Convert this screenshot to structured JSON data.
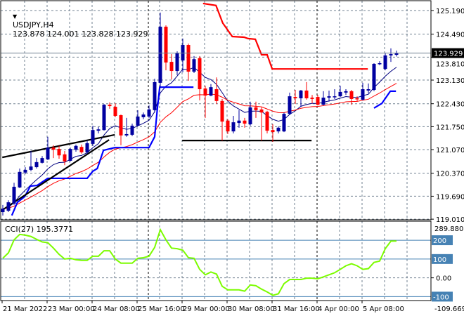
{
  "header": {
    "symbol": "USDJPY,H4",
    "ohlc": "123.878 124.001 123.828 123.929",
    "icon": "triangle-down-icon"
  },
  "current_price": "123.929",
  "colors": {
    "bull": "#0000a0",
    "bear": "#ff0000",
    "fast_ma": "#000080",
    "slow_ma": "#ff0000",
    "support": "#0000ff",
    "resistance": "#ff0000",
    "trendline": "#000000",
    "cci": "#7cfc00",
    "cci_levels": "#4682b4",
    "grid": "#708090"
  },
  "chart_data": [
    {
      "type": "candlestick",
      "title": "USDJPY,H4",
      "y_ticks": [
        "125.190",
        "124.490",
        "123.810",
        "123.130",
        "122.430",
        "121.750",
        "121.070",
        "120.370",
        "119.690",
        "119.010"
      ],
      "ylim": [
        119.01,
        125.46
      ],
      "x_ticks": [
        {
          "label": "21 Mar 2022",
          "index": 0
        },
        {
          "label": "23 Mar 00:00",
          "index": 8
        },
        {
          "label": "24 Mar 08:00",
          "index": 16
        },
        {
          "label": "25 Mar 16:00",
          "index": 24
        },
        {
          "label": "29 Mar 00:00",
          "index": 32
        },
        {
          "label": "30 Mar 08:00",
          "index": 40
        },
        {
          "label": "31 Mar 16:00",
          "index": 48
        },
        {
          "label": "4 Apr 00:00",
          "index": 56
        },
        {
          "label": "5 Apr 08:00",
          "index": 64
        }
      ],
      "grid": true,
      "period_separators": [
        26,
        56
      ],
      "candles": [
        [
          119.22,
          119.43,
          119.12,
          119.32
        ],
        [
          119.26,
          119.57,
          119.22,
          119.51
        ],
        [
          119.47,
          120.09,
          119.43,
          119.97
        ],
        [
          119.95,
          120.51,
          119.93,
          120.41
        ],
        [
          120.39,
          120.55,
          120.34,
          120.47
        ],
        [
          120.47,
          121.03,
          120.43,
          120.57
        ],
        [
          120.55,
          120.82,
          120.51,
          120.7
        ],
        [
          120.68,
          120.88,
          120.66,
          120.82
        ],
        [
          120.78,
          121.45,
          120.76,
          121.13
        ],
        [
          121.13,
          121.2,
          120.82,
          121.07
        ],
        [
          121.09,
          121.18,
          120.8,
          120.9
        ],
        [
          120.93,
          121.03,
          120.61,
          120.72
        ],
        [
          120.74,
          121.13,
          120.72,
          121.09
        ],
        [
          121.07,
          121.22,
          121.01,
          121.18
        ],
        [
          121.15,
          121.22,
          120.95,
          120.99
        ],
        [
          120.99,
          121.34,
          120.95,
          121.26
        ],
        [
          121.24,
          121.78,
          121.18,
          121.65
        ],
        [
          121.63,
          121.74,
          121.55,
          121.67
        ],
        [
          121.65,
          122.42,
          121.63,
          122.4
        ],
        [
          122.4,
          122.47,
          122.28,
          122.36
        ],
        [
          122.34,
          122.44,
          122.03,
          122.07
        ],
        [
          122.09,
          122.11,
          121.2,
          121.49
        ],
        [
          121.49,
          122.01,
          121.45,
          121.53
        ],
        [
          121.51,
          121.84,
          121.47,
          121.78
        ],
        [
          121.78,
          122.24,
          121.76,
          122.05
        ],
        [
          122.03,
          122.17,
          121.97,
          122.11
        ],
        [
          122.05,
          122.38,
          122.01,
          122.26
        ],
        [
          122.24,
          123.17,
          122.17,
          123.07
        ],
        [
          123.05,
          125.13,
          122.9,
          124.71
        ],
        [
          124.71,
          124.75,
          123.42,
          123.65
        ],
        [
          123.67,
          123.9,
          123.15,
          123.4
        ],
        [
          123.4,
          123.98,
          123.28,
          123.94
        ],
        [
          123.71,
          124.36,
          123.36,
          124.17
        ],
        [
          124.17,
          124.21,
          123.11,
          123.38
        ],
        [
          123.38,
          123.84,
          123.34,
          123.75
        ],
        [
          123.78,
          123.84,
          122.53,
          122.86
        ],
        [
          122.88,
          122.96,
          122.01,
          122.67
        ],
        [
          122.67,
          123.01,
          122.65,
          122.92
        ],
        [
          122.86,
          123.21,
          122.42,
          122.51
        ],
        [
          122.51,
          122.57,
          121.34,
          121.9
        ],
        [
          121.93,
          121.97,
          121.53,
          121.61
        ],
        [
          121.61,
          122.07,
          121.55,
          121.88
        ],
        [
          121.86,
          122.24,
          121.72,
          121.93
        ],
        [
          121.93,
          122.01,
          121.72,
          121.84
        ],
        [
          121.82,
          122.49,
          121.78,
          122.32
        ],
        [
          122.32,
          122.49,
          122.01,
          122.24
        ],
        [
          122.26,
          122.32,
          121.34,
          122.17
        ],
        [
          122.19,
          122.22,
          121.55,
          121.63
        ],
        [
          121.65,
          121.82,
          121.3,
          121.59
        ],
        [
          121.61,
          121.76,
          121.55,
          121.72
        ],
        [
          121.61,
          122.17,
          121.59,
          122.13
        ],
        [
          122.13,
          122.76,
          122.09,
          122.65
        ],
        [
          122.63,
          122.84,
          122.42,
          122.59
        ],
        [
          122.59,
          122.84,
          122.34,
          122.82
        ],
        [
          122.82,
          123.07,
          122.55,
          122.59
        ],
        [
          122.61,
          122.69,
          122.44,
          122.57
        ],
        [
          122.63,
          122.69,
          122.38,
          122.4
        ],
        [
          122.4,
          122.8,
          122.38,
          122.61
        ],
        [
          122.61,
          122.82,
          122.49,
          122.65
        ],
        [
          122.63,
          122.86,
          122.57,
          122.65
        ],
        [
          122.65,
          122.96,
          122.63,
          122.78
        ],
        [
          122.76,
          122.86,
          122.69,
          122.8
        ],
        [
          122.8,
          122.84,
          122.4,
          122.57
        ],
        [
          122.59,
          122.65,
          122.49,
          122.57
        ],
        [
          122.55,
          123.05,
          122.53,
          122.86
        ],
        [
          122.82,
          123.03,
          122.74,
          122.86
        ],
        [
          122.84,
          123.63,
          122.8,
          123.61
        ],
        [
          123.61,
          123.69,
          123.57,
          123.63
        ],
        [
          123.46,
          123.94,
          123.42,
          123.86
        ],
        [
          123.86,
          124.07,
          123.67,
          123.9
        ],
        [
          123.878,
          124.001,
          123.828,
          123.929
        ]
      ],
      "candle_fields": [
        "open",
        "high",
        "low",
        "close"
      ],
      "support_line": [
        [
          [
            1.6,
            119.12
          ],
          [
            2.6,
            119.51
          ],
          [
            3.9,
            119.68
          ],
          [
            4.9,
            119.99
          ],
          [
            6.1,
            120.01
          ],
          [
            8,
            120.22
          ],
          [
            15,
            120.22
          ],
          [
            16,
            120.43
          ],
          [
            16.8,
            120.51
          ],
          [
            17.9,
            121.05
          ],
          [
            19.9,
            121.13
          ],
          [
            26,
            121.13
          ],
          [
            27,
            121.45
          ],
          [
            27.5,
            122.32
          ],
          [
            27.9,
            122.92
          ],
          [
            33.9,
            122.92
          ]
        ],
        [
          [
            66,
            122.3
          ],
          [
            67.4,
            122.44
          ],
          [
            68.9,
            122.8
          ],
          [
            69.9,
            122.8
          ]
        ]
      ],
      "resistance_line": [
        [
          35.6,
          125.4
        ],
        [
          37.9,
          125.34
        ],
        [
          39.1,
          124.82
        ],
        [
          40.8,
          124.42
        ],
        [
          42.9,
          124.4
        ],
        [
          43.6,
          124.36
        ],
        [
          44.9,
          124.34
        ],
        [
          46,
          123.88
        ],
        [
          47,
          123.88
        ],
        [
          47.9,
          123.46
        ],
        [
          64.9,
          123.46
        ]
      ],
      "trendlines": [
        [
          [
            -0.1,
            120.84
          ],
          [
            19.9,
            121.51
          ]
        ],
        [
          [
            -0.1,
            119.28
          ],
          [
            18.9,
            121.36
          ]
        ],
        [
          [
            31.9,
            121.34
          ],
          [
            54.9,
            121.34
          ]
        ]
      ]
    },
    {
      "type": "line",
      "title": "CCI(27) 195.3771",
      "y_max_label": "289.8801",
      "y_min_label": "-109.6698",
      "ylim": [
        -109.6698,
        289.8801
      ],
      "levels": [
        {
          "value": 200,
          "label": "200"
        },
        {
          "value": 100,
          "label": "100"
        },
        {
          "value": -100,
          "label": "-100"
        }
      ],
      "zero_label": "0.00",
      "values": [
        104,
        133,
        202,
        231,
        227,
        220,
        205,
        191,
        187,
        158,
        125,
        100,
        104,
        96,
        93,
        93,
        115,
        115,
        144,
        144,
        100,
        78,
        78,
        78,
        104,
        107,
        115,
        162,
        256,
        202,
        158,
        155,
        147,
        107,
        104,
        45,
        16,
        31,
        20,
        -45,
        -64,
        -64,
        -64,
        -71,
        -38,
        -42,
        -60,
        -75,
        -93,
        -85,
        -31,
        -9,
        -9,
        -9,
        -2,
        -2,
        -5,
        5,
        16,
        27,
        45,
        64,
        75,
        64,
        45,
        49,
        82,
        89,
        155,
        195,
        195.3771
      ]
    }
  ]
}
